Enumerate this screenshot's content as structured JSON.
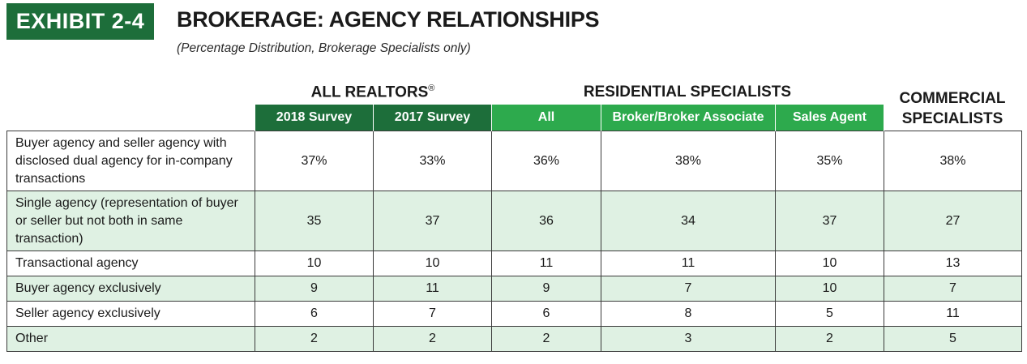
{
  "exhibit": "EXHIBIT 2-4",
  "title": "BROKERAGE: AGENCY RELATIONSHIPS",
  "subtitle": "(Percentage Distribution, Brokerage Specialists only)",
  "groups": {
    "realtors": "ALL REALTORS",
    "realtors_mark": "®",
    "residential": "RESIDENTIAL SPECIALISTS",
    "commercial_line1": "COMMERCIAL",
    "commercial_line2": "SPECIALISTS"
  },
  "columns": [
    "2018 Survey",
    "2017 Survey",
    "All",
    "Broker/Broker Associate",
    "Sales Agent"
  ],
  "rows": [
    {
      "label": "Buyer agency and seller agency with disclosed dual agency for in-company transactions",
      "values": [
        "37%",
        "33%",
        "36%",
        "38%",
        "35%",
        "38%"
      ]
    },
    {
      "label": "Single agency (representation of buyer or seller but not both in same transaction)",
      "values": [
        "35",
        "37",
        "36",
        "34",
        "37",
        "27"
      ]
    },
    {
      "label": "Transactional agency",
      "values": [
        "10",
        "10",
        "11",
        "11",
        "10",
        "13"
      ]
    },
    {
      "label": "Buyer agency exclusively",
      "values": [
        "9",
        "11",
        "9",
        "7",
        "10",
        "7"
      ]
    },
    {
      "label": "Seller agency exclusively",
      "values": [
        "6",
        "7",
        "6",
        "8",
        "5",
        "11"
      ]
    },
    {
      "label": "Other",
      "values": [
        "2",
        "2",
        "2",
        "3",
        "2",
        "5"
      ]
    }
  ],
  "colors": {
    "dark_green": "#1d6e3a",
    "light_green": "#2daa4d",
    "row_tint": "#dff1e3"
  }
}
